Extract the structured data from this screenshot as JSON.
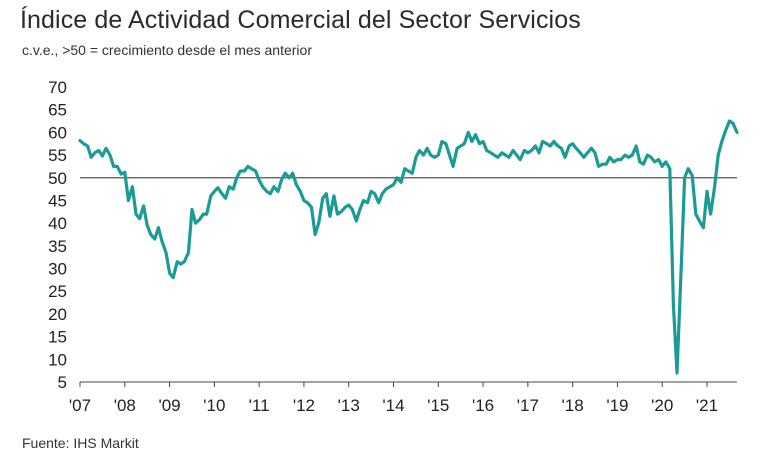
{
  "title": "Índice de Actividad Comercial del Sector Servicios",
  "subtitle": "c.v.e., >50 = crecimiento desde el mes anterior",
  "source": "Fuente: IHS Markit",
  "chart_data": {
    "type": "line",
    "title": "Índice de Actividad Comercial del Sector Servicios",
    "subtitle": "c.v.e., >50 = crecimiento desde el mes anterior",
    "xlabel": "",
    "ylabel": "",
    "ylim": [
      5,
      70
    ],
    "yticks": [
      5,
      10,
      15,
      20,
      25,
      30,
      35,
      40,
      45,
      50,
      55,
      60,
      65,
      70
    ],
    "xlim": [
      2007.0,
      2021.67
    ],
    "xticks": [
      {
        "value": 2007.0,
        "label": "'07"
      },
      {
        "value": 2008.0,
        "label": "'08"
      },
      {
        "value": 2009.0,
        "label": "'09"
      },
      {
        "value": 2010.0,
        "label": "'10"
      },
      {
        "value": 2011.0,
        "label": "'11"
      },
      {
        "value": 2012.0,
        "label": "'12"
      },
      {
        "value": 2013.0,
        "label": "'13"
      },
      {
        "value": 2014.0,
        "label": "'14"
      },
      {
        "value": 2015.0,
        "label": "'15"
      },
      {
        "value": 2016.0,
        "label": "'16"
      },
      {
        "value": 2017.0,
        "label": "'17"
      },
      {
        "value": 2018.0,
        "label": "'18"
      },
      {
        "value": 2019.0,
        "label": "'19"
      },
      {
        "value": 2020.0,
        "label": "'20"
      },
      {
        "value": 2021.0,
        "label": "'21"
      }
    ],
    "reference_line": 50,
    "grid": false,
    "line_color": "#1a9b96",
    "reference_color": "#555555",
    "series": [
      {
        "x": [
          2007.0,
          2007.08,
          2007.17,
          2007.25,
          2007.33,
          2007.42,
          2007.5,
          2007.58,
          2007.67,
          2007.75,
          2007.83,
          2007.92,
          2008.0,
          2008.08,
          2008.17,
          2008.25,
          2008.33,
          2008.42,
          2008.5,
          2008.58,
          2008.67,
          2008.75,
          2008.83,
          2008.92,
          2009.0,
          2009.08,
          2009.17,
          2009.25,
          2009.33,
          2009.42,
          2009.5,
          2009.58,
          2009.67,
          2009.75,
          2009.83,
          2009.92,
          2010.0,
          2010.08,
          2010.17,
          2010.25,
          2010.33,
          2010.42,
          2010.5,
          2010.58,
          2010.67,
          2010.75,
          2010.83,
          2010.92,
          2011.0,
          2011.08,
          2011.17,
          2011.25,
          2011.33,
          2011.42,
          2011.5,
          2011.58,
          2011.67,
          2011.75,
          2011.83,
          2011.92,
          2012.0,
          2012.08,
          2012.17,
          2012.25,
          2012.33,
          2012.42,
          2012.5,
          2012.58,
          2012.67,
          2012.75,
          2012.83,
          2012.92,
          2013.0,
          2013.08,
          2013.17,
          2013.25,
          2013.33,
          2013.42,
          2013.5,
          2013.58,
          2013.67,
          2013.75,
          2013.83,
          2013.92,
          2014.0,
          2014.08,
          2014.17,
          2014.25,
          2014.33,
          2014.42,
          2014.5,
          2014.58,
          2014.67,
          2014.75,
          2014.83,
          2014.92,
          2015.0,
          2015.08,
          2015.17,
          2015.25,
          2015.33,
          2015.42,
          2015.5,
          2015.58,
          2015.67,
          2015.75,
          2015.83,
          2015.92,
          2016.0,
          2016.08,
          2016.17,
          2016.25,
          2016.33,
          2016.42,
          2016.5,
          2016.58,
          2016.67,
          2016.75,
          2016.83,
          2016.92,
          2017.0,
          2017.08,
          2017.17,
          2017.25,
          2017.33,
          2017.42,
          2017.5,
          2017.58,
          2017.67,
          2017.75,
          2017.83,
          2017.92,
          2018.0,
          2018.08,
          2018.17,
          2018.25,
          2018.33,
          2018.42,
          2018.5,
          2018.58,
          2018.67,
          2018.75,
          2018.83,
          2018.92,
          2019.0,
          2019.08,
          2019.17,
          2019.25,
          2019.33,
          2019.42,
          2019.5,
          2019.58,
          2019.67,
          2019.75,
          2019.83,
          2019.92,
          2020.0,
          2020.08,
          2020.17,
          2020.25,
          2020.33,
          2020.42,
          2020.5,
          2020.58,
          2020.67,
          2020.75,
          2020.83,
          2020.92,
          2021.0,
          2021.08,
          2021.17,
          2021.25,
          2021.33,
          2021.42,
          2021.5,
          2021.58,
          2021.67
        ],
        "y": [
          58.2,
          57.5,
          57.0,
          54.5,
          55.5,
          56.0,
          54.8,
          56.5,
          55.0,
          52.5,
          52.5,
          50.8,
          51.2,
          45.0,
          48.0,
          42.0,
          41.0,
          43.8,
          39.5,
          37.5,
          36.5,
          39.0,
          36.0,
          33.5,
          29.0,
          28.0,
          31.5,
          31.0,
          31.5,
          33.5,
          43.0,
          40.0,
          40.8,
          42.0,
          42.0,
          46.0,
          47.0,
          47.8,
          46.5,
          45.5,
          48.0,
          47.5,
          50.0,
          51.5,
          51.5,
          52.5,
          52.0,
          51.5,
          49.5,
          48.0,
          47.0,
          46.5,
          48.0,
          47.0,
          49.5,
          51.0,
          50.0,
          51.0,
          48.5,
          47.0,
          45.0,
          44.5,
          43.5,
          37.5,
          40.0,
          45.5,
          46.5,
          41.5,
          46.0,
          42.0,
          42.5,
          43.5,
          44.0,
          43.0,
          40.5,
          43.0,
          45.0,
          44.5,
          47.0,
          46.5,
          44.5,
          46.5,
          47.5,
          48.0,
          48.5,
          50.0,
          49.0,
          52.0,
          51.5,
          51.0,
          54.5,
          56.0,
          55.0,
          56.5,
          55.0,
          54.5,
          55.0,
          58.0,
          57.5,
          55.0,
          52.5,
          56.5,
          57.0,
          57.5,
          60.0,
          58.0,
          59.5,
          57.5,
          58.0,
          56.0,
          55.5,
          55.0,
          54.5,
          55.5,
          55.0,
          54.5,
          56.0,
          55.0,
          54.0,
          56.0,
          55.5,
          56.0,
          57.0,
          55.5,
          58.0,
          57.5,
          57.0,
          58.0,
          57.0,
          56.5,
          54.5,
          57.0,
          57.5,
          56.5,
          55.5,
          54.5,
          55.5,
          56.5,
          55.5,
          52.5,
          53.0,
          53.0,
          54.5,
          53.5,
          54.0,
          54.0,
          55.0,
          54.5,
          55.0,
          57.0,
          53.5,
          53.0,
          55.0,
          54.5,
          53.5,
          54.0,
          52.5,
          53.5,
          52.0,
          22.0,
          7.0,
          29.0,
          50.0,
          52.0,
          50.5,
          42.0,
          40.5,
          39.0,
          47.0,
          42.0,
          48.0,
          55.0,
          58.0,
          60.5,
          62.5,
          62.0,
          60.0
        ]
      }
    ]
  }
}
